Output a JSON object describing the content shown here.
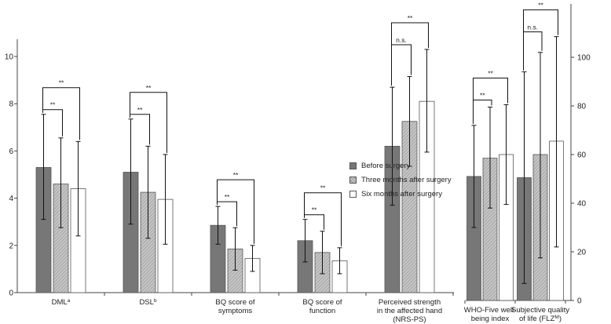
{
  "chart_data": [
    {
      "type": "bar",
      "categories": [
        "DML",
        "DSL",
        "BQ score of symptoms",
        "BQ score of function",
        "Perceived strength in the affected hand (NRS-PS)"
      ],
      "category_lines": [
        [
          "DML^a"
        ],
        [
          "DSL^b"
        ],
        [
          "BQ score of",
          "symptoms"
        ],
        [
          "BQ score of",
          "function"
        ],
        [
          "Perceived strength",
          "in the affected hand",
          "(NRS-PS)"
        ]
      ],
      "superscripts": [
        "a",
        "b",
        "",
        "",
        ""
      ],
      "ylim": [
        0,
        10
      ],
      "yticks": [
        "0",
        "2",
        "4",
        "6",
        "8",
        "10"
      ],
      "series": [
        {
          "name": "Before surgery",
          "values": [
            5.3,
            5.1,
            2.85,
            2.2,
            6.2
          ],
          "err_low": [
            3.1,
            2.9,
            2.05,
            1.3,
            3.7
          ],
          "err_high": [
            7.55,
            7.35,
            3.65,
            3.1,
            8.7
          ]
        },
        {
          "name": "Three months after surgery",
          "values": [
            4.6,
            4.25,
            1.85,
            1.7,
            7.25
          ],
          "err_low": [
            2.75,
            2.3,
            0.95,
            0.8,
            5.35
          ],
          "err_high": [
            6.55,
            6.2,
            2.75,
            2.6,
            9.15
          ]
        },
        {
          "name": "Six months after surgery",
          "values": [
            4.4,
            3.95,
            1.45,
            1.35,
            8.1
          ],
          "err_low": [
            2.4,
            2.05,
            0.9,
            0.8,
            5.95
          ],
          "err_high": [
            6.4,
            5.85,
            2.0,
            1.9,
            10.3
          ]
        }
      ],
      "significance": [
        {
          "category": 0,
          "pairs": [
            {
              "from": 0,
              "to": 1,
              "label": "**"
            },
            {
              "from": 0,
              "to": 2,
              "label": "**"
            }
          ]
        },
        {
          "category": 1,
          "pairs": [
            {
              "from": 0,
              "to": 1,
              "label": "**"
            },
            {
              "from": 0,
              "to": 2,
              "label": "**"
            }
          ]
        },
        {
          "category": 2,
          "pairs": [
            {
              "from": 0,
              "to": 1,
              "label": "**"
            },
            {
              "from": 0,
              "to": 2,
              "label": "**"
            }
          ]
        },
        {
          "category": 3,
          "pairs": [
            {
              "from": 0,
              "to": 1,
              "label": "**"
            },
            {
              "from": 0,
              "to": 2,
              "label": "**"
            }
          ]
        },
        {
          "category": 4,
          "pairs": [
            {
              "from": 0,
              "to": 1,
              "label": "n.s."
            },
            {
              "from": 0,
              "to": 2,
              "label": "**"
            }
          ]
        }
      ]
    },
    {
      "type": "bar",
      "categories": [
        "WHO-Five well-being index",
        "Subjective quality of life (FLZM)"
      ],
      "category_lines": [
        [
          "WHO-Five well-",
          "being index"
        ],
        [
          "Subjective quality",
          "of life (FLZ^M)"
        ]
      ],
      "ylim": [
        0,
        100
      ],
      "yticks": [
        "0",
        "20",
        "40",
        "60",
        "80",
        "100"
      ],
      "series": [
        {
          "name": "Before surgery",
          "values": [
            51,
            50.5
          ],
          "err_low": [
            30,
            7
          ],
          "err_high": [
            72,
            94
          ]
        },
        {
          "name": "Three months after surgery",
          "values": [
            58.5,
            60
          ],
          "err_low": [
            38,
            17.5
          ],
          "err_high": [
            79.5,
            102
          ]
        },
        {
          "name": "Six months after surgery",
          "values": [
            60,
            65.5
          ],
          "err_low": [
            39.5,
            22
          ],
          "err_high": [
            80.5,
            108.5
          ]
        }
      ],
      "significance": [
        {
          "category": 0,
          "pairs": [
            {
              "from": 0,
              "to": 1,
              "label": "**"
            },
            {
              "from": 0,
              "to": 2,
              "label": "**"
            }
          ]
        },
        {
          "category": 1,
          "pairs": [
            {
              "from": 0,
              "to": 1,
              "label": "n.s."
            },
            {
              "from": 0,
              "to": 2,
              "label": "**"
            }
          ]
        }
      ]
    }
  ],
  "legend": [
    {
      "label": "Before surgery",
      "color": "#777777"
    },
    {
      "label": "Three months after surgery",
      "color": "#bdbdbd"
    },
    {
      "label": "Six months after surgery",
      "color": "#ffffff"
    }
  ]
}
